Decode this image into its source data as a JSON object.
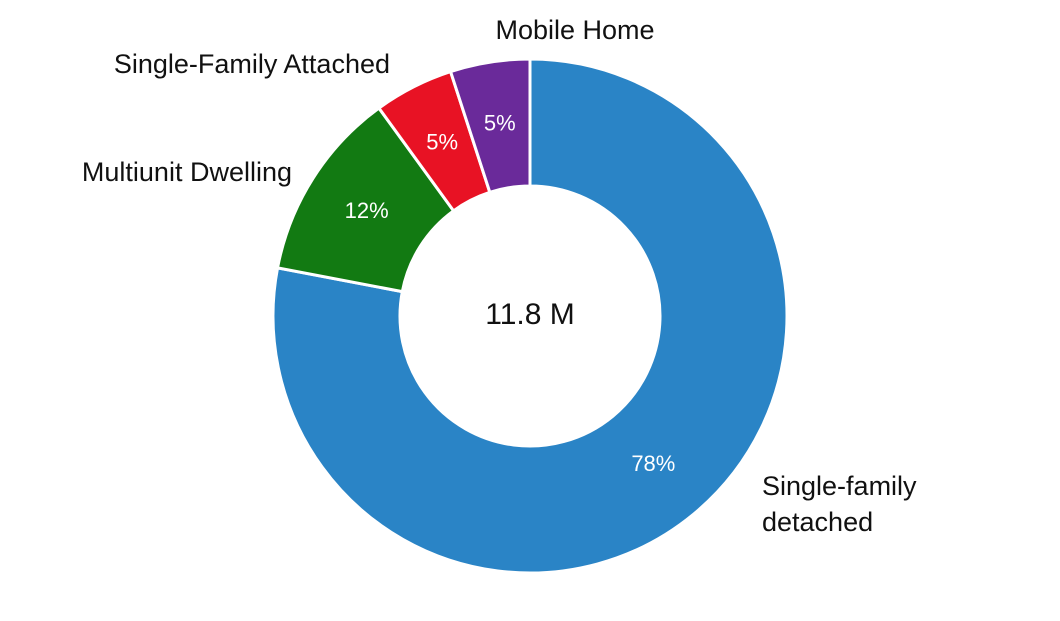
{
  "chart_data": {
    "type": "donut",
    "center_label": "11.8 M",
    "categories": [
      "Single-family detached",
      "Multiunit Dwelling",
      "Single-Family Attached",
      "Mobile Home"
    ],
    "values": [
      78,
      12,
      5,
      5
    ],
    "value_labels": [
      "78%",
      "12%",
      "5%",
      "5%"
    ],
    "colors": [
      "#2a84c6",
      "#127a12",
      "#e81224",
      "#6a2a9a"
    ]
  }
}
